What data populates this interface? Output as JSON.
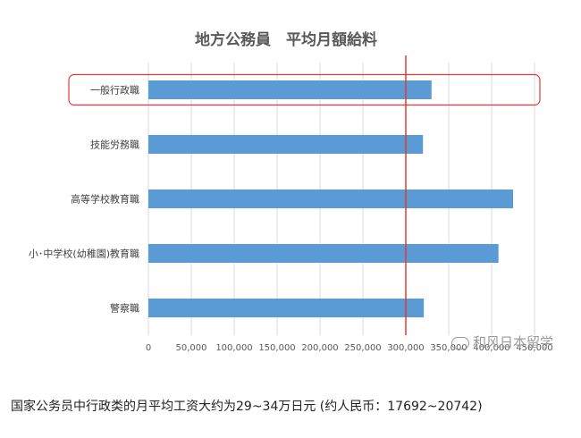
{
  "chart_data": {
    "type": "bar",
    "orientation": "horizontal",
    "title": "地方公務員　平均月額給料",
    "categories": [
      "一般行政職",
      "技能労務職",
      "高等学校教育職",
      "小･中学校(幼稚園)教育職",
      "警察職"
    ],
    "values": [
      330000,
      320000,
      425000,
      408000,
      321000
    ],
    "xlim": [
      0,
      450000
    ],
    "x_ticks": [
      0,
      50000,
      100000,
      150000,
      200000,
      250000,
      300000,
      350000,
      400000,
      450000
    ],
    "x_tick_labels": [
      "0",
      "50,000",
      "100,000",
      "150,000",
      "200,000",
      "250,000",
      "300,000",
      "350,000",
      "400,000",
      "450,000"
    ],
    "reference_line": 300000,
    "highlighted_category": "一般行政職",
    "grid": "vertical",
    "colors": {
      "bar": "#5b9bd5",
      "reference_line": "#e53935",
      "highlight_box": "#e53935",
      "grid": "#d9d9d9"
    }
  },
  "watermark": {
    "text": "和风日本留学",
    "icon": "wechat-icon"
  },
  "caption": "国家公务员中行政类的月平均工资大约为29~34万日元  (约人民币：17692~20742)"
}
